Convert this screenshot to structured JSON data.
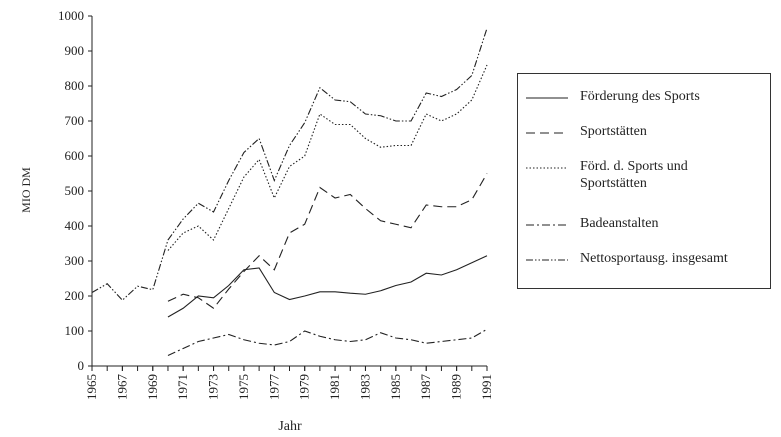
{
  "chart_data": {
    "type": "line",
    "x": [
      1965,
      1966,
      1967,
      1968,
      1969,
      1970,
      1971,
      1972,
      1973,
      1974,
      1975,
      1976,
      1977,
      1978,
      1979,
      1980,
      1981,
      1982,
      1983,
      1984,
      1985,
      1986,
      1987,
      1988,
      1989,
      1990,
      1991
    ],
    "xlim": [
      1965,
      1991
    ],
    "xticks": [
      1965,
      1967,
      1969,
      1971,
      1973,
      1975,
      1977,
      1979,
      1981,
      1983,
      1985,
      1987,
      1989,
      1991
    ],
    "ylim": [
      0,
      1000
    ],
    "yticks": [
      0,
      100,
      200,
      300,
      400,
      500,
      600,
      700,
      800,
      900,
      1000
    ],
    "ylabel": "MIO DM",
    "xlabel": "Jahr",
    "series": [
      {
        "name": "Förderung des Sports",
        "color": "#222222",
        "dash": "none",
        "values": [
          null,
          null,
          null,
          null,
          null,
          140,
          165,
          200,
          195,
          230,
          275,
          280,
          210,
          190,
          200,
          212,
          212,
          208,
          205,
          215,
          230,
          240,
          265,
          260,
          275,
          295,
          315
        ]
      },
      {
        "name": "Sportstätten",
        "color": "#222222",
        "dash": "9,5",
        "values": [
          null,
          null,
          null,
          null,
          null,
          185,
          205,
          195,
          165,
          220,
          270,
          315,
          275,
          380,
          405,
          510,
          480,
          490,
          450,
          415,
          405,
          395,
          460,
          455,
          455,
          475,
          550
        ]
      },
      {
        "name": "Förd. d. Sports und Sportstätten",
        "color": "#222222",
        "dash": "1.5,2",
        "values": [
          null,
          null,
          null,
          null,
          null,
          330,
          380,
          400,
          360,
          450,
          540,
          590,
          480,
          570,
          600,
          720,
          690,
          690,
          650,
          625,
          630,
          630,
          720,
          700,
          720,
          760,
          860
        ]
      },
      {
        "name": "Badeanstalten",
        "color": "#222222",
        "dash": "8,3,2,3",
        "values": [
          null,
          null,
          null,
          null,
          null,
          30,
          50,
          70,
          80,
          90,
          75,
          65,
          60,
          70,
          100,
          85,
          75,
          70,
          75,
          95,
          80,
          75,
          65,
          70,
          75,
          80,
          105
        ]
      },
      {
        "name": "Nettosportausg. insgesamt",
        "color": "#222222",
        "dash": "7,2,1.5,2,1.5,2",
        "values": [
          210,
          235,
          188,
          228,
          218,
          360,
          420,
          465,
          440,
          530,
          610,
          650,
          530,
          630,
          695,
          795,
          760,
          755,
          720,
          715,
          700,
          700,
          780,
          770,
          790,
          830,
          965
        ]
      }
    ]
  }
}
